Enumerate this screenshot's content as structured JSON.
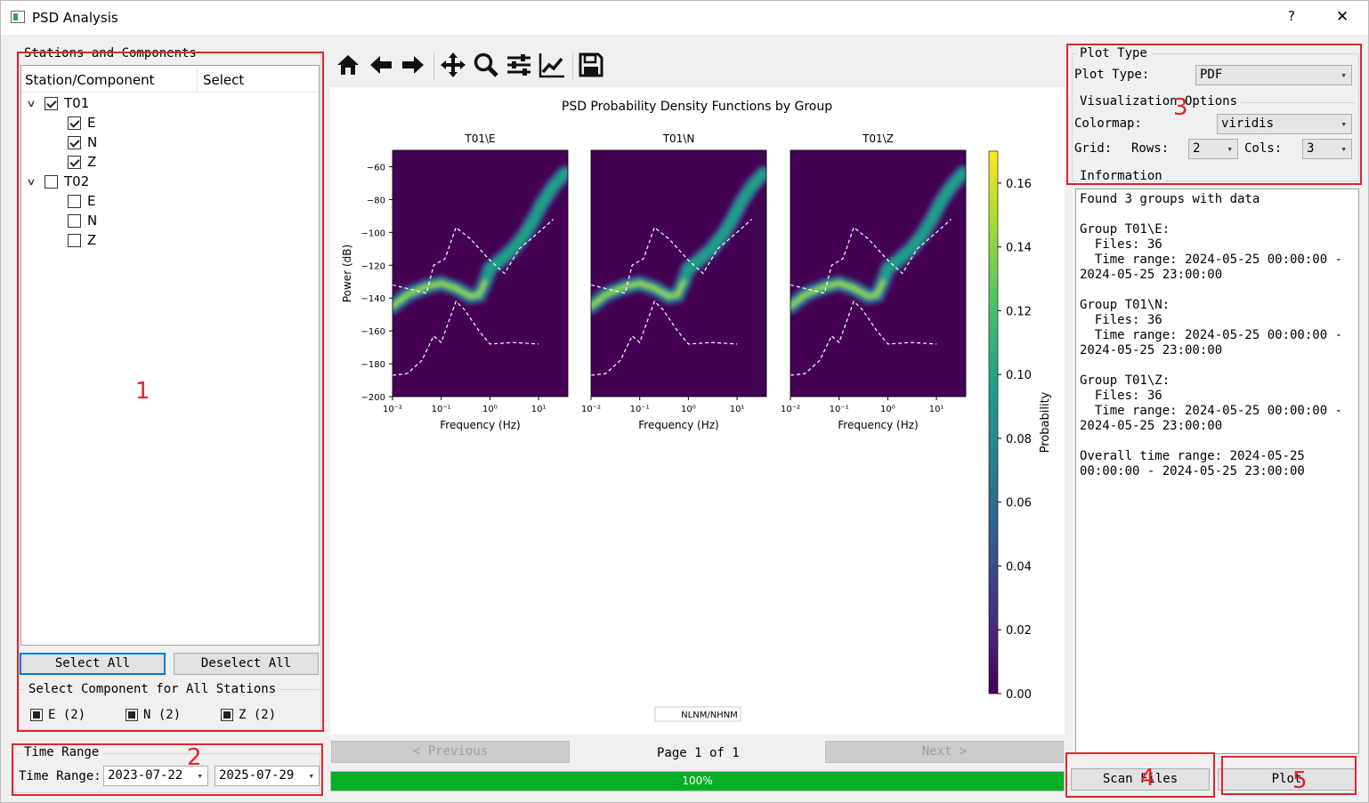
{
  "window": {
    "title": "PSD Analysis",
    "help": "?",
    "close": "✕"
  },
  "stations": {
    "group_title": "Stations and Components",
    "col_station": "Station/Component",
    "col_select": "Select",
    "tree": [
      {
        "label": "T01",
        "checked": true,
        "children": [
          {
            "label": "E",
            "checked": true
          },
          {
            "label": "N",
            "checked": true
          },
          {
            "label": "Z",
            "checked": true
          }
        ]
      },
      {
        "label": "T02",
        "checked": false,
        "children": [
          {
            "label": "E",
            "checked": false
          },
          {
            "label": "N",
            "checked": false
          },
          {
            "label": "Z",
            "checked": false
          }
        ]
      }
    ],
    "select_all": "Select All",
    "deselect_all": "Deselect All",
    "component_group_title": "Select Component for All Stations",
    "components": [
      "E (2)",
      "N (2)",
      "Z (2)"
    ]
  },
  "time_range": {
    "group_title": "Time Range",
    "label": "Time Range:",
    "start": "2023-07-22",
    "end": "2025-07-29"
  },
  "toolbar": [
    "home-icon",
    "back-icon",
    "forward-icon",
    "pan-icon",
    "zoom-icon",
    "configure-subplots-icon",
    "edit-axes-icon",
    "save-icon"
  ],
  "plot": {
    "suptitle": "PSD Probability Density Functions by Group",
    "legend": "NLNM/NHNM",
    "colorbar_label": "Probability",
    "colorbar_ticks": [
      "0.16",
      "0.14",
      "0.12",
      "0.10",
      "0.08",
      "0.06",
      "0.04",
      "0.02",
      "0.00"
    ],
    "colormap_colors": [
      "#440154",
      "#46327e",
      "#365c8d",
      "#277f8e",
      "#1fa187",
      "#4ac16d",
      "#a0da39",
      "#fde725"
    ]
  },
  "chart_data": {
    "type": "heatmap",
    "title": "PSD Probability Density Functions by Group",
    "subplots": [
      "T01\\E",
      "T01\\N",
      "T01\\Z"
    ],
    "xlabel": "Frequency (Hz)",
    "ylabel": "Power (dB)",
    "xscale": "log",
    "xlim": [
      0.01,
      40
    ],
    "ylim": [
      -200,
      -50
    ],
    "x_ticks": [
      "10⁻²",
      "10⁻¹",
      "10⁰",
      "10¹"
    ],
    "y_ticks": [
      -60,
      -80,
      -100,
      -120,
      -140,
      -160,
      -180,
      -200
    ],
    "colorbar": {
      "label": "Probability",
      "range": [
        0,
        0.17
      ]
    },
    "legend": [
      "NLNM/NHNM"
    ]
  },
  "pager": {
    "previous": "< Previous",
    "page": "Page 1 of 1",
    "next": "Next >"
  },
  "progress": {
    "value": 100,
    "text": "100%"
  },
  "plot_type": {
    "group_title": "Plot Type",
    "label": "Plot Type:",
    "value": "PDF"
  },
  "viz": {
    "group_title": "Visualization Options",
    "colormap_label": "Colormap:",
    "colormap": "viridis",
    "grid_label": "Grid:",
    "rows_label": "Rows:",
    "rows": "2",
    "cols_label": "Cols:",
    "cols": "3"
  },
  "info": {
    "group_title": "Information",
    "text": "Found 3 groups with data\n\nGroup T01\\E:\n  Files: 36\n  Time range: 2024-05-25 00:00:00 -\n2024-05-25 23:00:00\n\nGroup T01\\N:\n  Files: 36\n  Time range: 2024-05-25 00:00:00 -\n2024-05-25 23:00:00\n\nGroup T01\\Z:\n  Files: 36\n  Time range: 2024-05-25 00:00:00 -\n2024-05-25 23:00:00\n\nOverall time range: 2024-05-25\n00:00:00 - 2024-05-25 23:00:00"
  },
  "actions": {
    "scan": "Scan Files",
    "plot": "Plot"
  },
  "annotations": [
    "1",
    "2",
    "3",
    "4",
    "5"
  ]
}
